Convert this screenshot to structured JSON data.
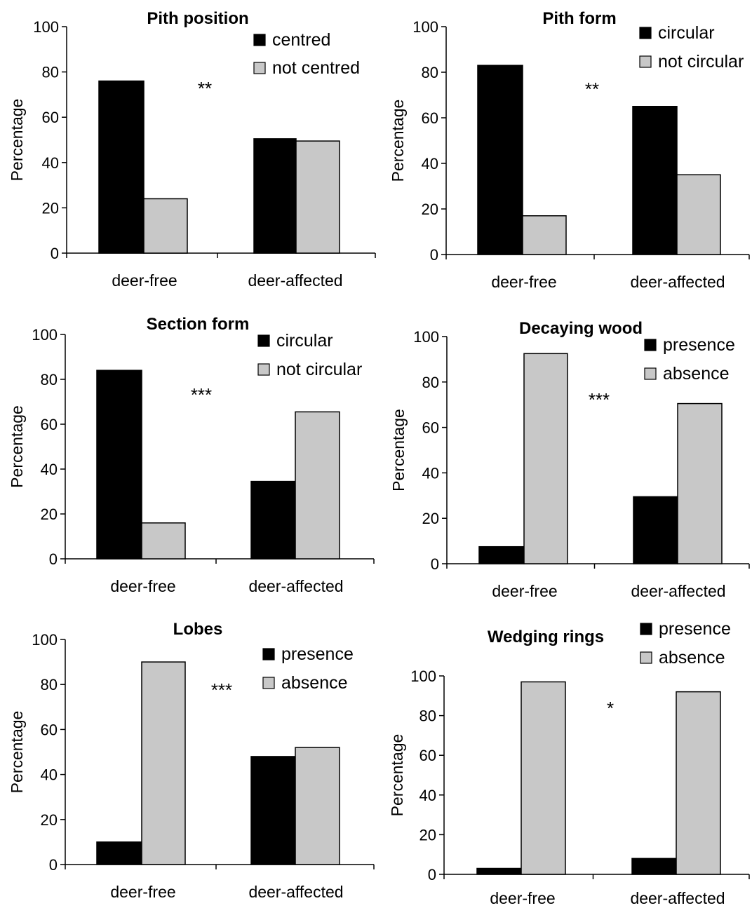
{
  "chart_data": [
    {
      "type": "bar",
      "title": "Pith position",
      "categories": [
        "deer-free",
        "deer-affected"
      ],
      "series": [
        {
          "name": "centred",
          "values": [
            76,
            50.5
          ]
        },
        {
          "name": "not centred",
          "values": [
            24,
            49.5
          ]
        }
      ],
      "ylabel": "Percentage",
      "ylim": [
        0,
        100
      ],
      "yticks": [
        0,
        20,
        40,
        60,
        80,
        100
      ],
      "significance": "**",
      "colors": [
        "#000000",
        "#c8c8c8"
      ],
      "grid": false,
      "legend": "top-right"
    },
    {
      "type": "bar",
      "title": "Pith form",
      "categories": [
        "deer-free",
        "deer-affected"
      ],
      "series": [
        {
          "name": "circular",
          "values": [
            83,
            65
          ]
        },
        {
          "name": "not circular",
          "values": [
            17,
            35
          ]
        }
      ],
      "ylabel": "Percentage",
      "ylim": [
        0,
        100
      ],
      "yticks": [
        0,
        20,
        40,
        60,
        80,
        100
      ],
      "significance": "**",
      "colors": [
        "#000000",
        "#c8c8c8"
      ],
      "grid": false,
      "legend": "top-right"
    },
    {
      "type": "bar",
      "title": "Section form",
      "categories": [
        "deer-free",
        "deer-affected"
      ],
      "series": [
        {
          "name": "circular",
          "values": [
            84,
            34.5
          ]
        },
        {
          "name": "not circular",
          "values": [
            16,
            65.5
          ]
        }
      ],
      "ylabel": "Percentage",
      "ylim": [
        0,
        100
      ],
      "yticks": [
        0,
        20,
        40,
        60,
        80,
        100
      ],
      "significance": "***",
      "colors": [
        "#000000",
        "#c8c8c8"
      ],
      "grid": false,
      "legend": "top-right"
    },
    {
      "type": "bar",
      "title": "Decaying wood",
      "categories": [
        "deer-free",
        "deer-affected"
      ],
      "series": [
        {
          "name": "presence",
          "values": [
            7.5,
            29.5
          ]
        },
        {
          "name": "absence",
          "values": [
            92.5,
            70.5
          ]
        }
      ],
      "ylabel": "Percentage",
      "ylim": [
        0,
        100
      ],
      "yticks": [
        0,
        20,
        40,
        60,
        80,
        100
      ],
      "significance": "***",
      "colors": [
        "#000000",
        "#c8c8c8"
      ],
      "grid": false,
      "legend": "top-right"
    },
    {
      "type": "bar",
      "title": "Lobes",
      "categories": [
        "deer-free",
        "deer-affected"
      ],
      "series": [
        {
          "name": "presence",
          "values": [
            10,
            48
          ]
        },
        {
          "name": "absence",
          "values": [
            90,
            52
          ]
        }
      ],
      "ylabel": "Percentage",
      "ylim": [
        0,
        100
      ],
      "yticks": [
        0,
        20,
        40,
        60,
        80,
        100
      ],
      "significance": "***",
      "colors": [
        "#000000",
        "#c8c8c8"
      ],
      "grid": false,
      "legend": "top-right"
    },
    {
      "type": "bar",
      "title": "Wedging rings",
      "categories": [
        "deer-free",
        "deer-affected"
      ],
      "series": [
        {
          "name": "presence",
          "values": [
            3,
            8
          ]
        },
        {
          "name": "absence",
          "values": [
            97,
            92
          ]
        }
      ],
      "ylabel": "Percentage",
      "ylim": [
        0,
        100
      ],
      "yticks": [
        0,
        20,
        40,
        60,
        80,
        100
      ],
      "significance": "*",
      "colors": [
        "#000000",
        "#c8c8c8"
      ],
      "grid": false,
      "legend": "top-right"
    }
  ]
}
